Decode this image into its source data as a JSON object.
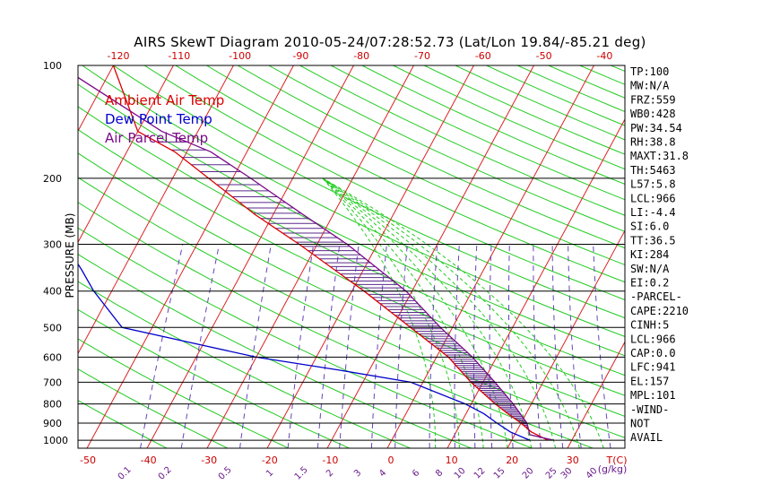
{
  "chart_data": {
    "type": "line",
    "title": "AIRS SkewT Diagram 2010-05-24/07:28:52.73 (Lat/Lon 19.84/-85.21 deg)",
    "ylabel": "PRESSURE (MB)",
    "y_scale": "log",
    "ylim": [
      1050,
      100
    ],
    "pressure_ticks": [
      100,
      200,
      300,
      400,
      500,
      600,
      700,
      800,
      900,
      1000
    ],
    "temp_ticks_bottom": [
      -50,
      -40,
      -30,
      -20,
      -10,
      0,
      10,
      20,
      30
    ],
    "temp_ticks_top": [
      -120,
      -110,
      -100,
      -90,
      -80,
      -70,
      -60,
      -50,
      -40
    ],
    "temp_unit_label": "T(C)",
    "mixing_ratio_labels": [
      "0.1",
      "0.2",
      "0.5",
      "1",
      "1.5",
      "2",
      "3",
      "4",
      "6",
      "8",
      "10",
      "12",
      "15",
      "20",
      "25",
      "30",
      "40"
    ],
    "mixing_ratio_unit": "(g/kg)",
    "legend": [
      {
        "label": "Ambient Air Temp",
        "color": "#dd0000"
      },
      {
        "label": "Dew Point Temp",
        "color": "#0000cc"
      },
      {
        "label": "Air Parcel Temp",
        "color": "#7a0a8a"
      }
    ],
    "series": [
      {
        "name": "Ambient Air Temp",
        "color": "#dd0000",
        "points": [
          [
            1000,
            26
          ],
          [
            950,
            22.5
          ],
          [
            900,
            20
          ],
          [
            850,
            17
          ],
          [
            800,
            14
          ],
          [
            700,
            8
          ],
          [
            600,
            2
          ],
          [
            500,
            -7
          ],
          [
            400,
            -18
          ],
          [
            300,
            -33
          ],
          [
            250,
            -43
          ],
          [
            200,
            -54
          ],
          [
            170,
            -62
          ],
          [
            150,
            -70
          ],
          [
            100,
            -80
          ]
        ]
      },
      {
        "name": "Dew Point Temp",
        "color": "#0000cc",
        "points": [
          [
            1000,
            23
          ],
          [
            950,
            19
          ],
          [
            900,
            16
          ],
          [
            850,
            13
          ],
          [
            800,
            9
          ],
          [
            700,
            -2
          ],
          [
            650,
            -15
          ],
          [
            600,
            -30
          ],
          [
            500,
            -55
          ],
          [
            400,
            -63
          ],
          [
            350,
            -67
          ],
          [
            300,
            -72
          ],
          [
            250,
            -77
          ],
          [
            200,
            -85
          ],
          [
            150,
            -93
          ],
          [
            100,
            -100
          ]
        ]
      },
      {
        "name": "Air Parcel Temp",
        "color": "#7a0a8a",
        "points": [
          [
            1000,
            27
          ],
          [
            966,
            22.5
          ],
          [
            900,
            21
          ],
          [
            800,
            17
          ],
          [
            700,
            12
          ],
          [
            600,
            6
          ],
          [
            500,
            -2
          ],
          [
            400,
            -11
          ],
          [
            300,
            -25
          ],
          [
            250,
            -35
          ],
          [
            200,
            -47
          ],
          [
            170,
            -56
          ],
          [
            150,
            -66
          ],
          [
            100,
            -89
          ]
        ]
      }
    ],
    "indices": [
      "TP:100",
      "MW:N/A",
      "FRZ:559",
      "WB0:428",
      "PW:34.54",
      "RH:38.8",
      "MAXT:31.8",
      "TH:5463",
      "L57:5.8",
      "LCL:966",
      "LI:-4.4",
      "SI:6.0",
      "TT:36.5",
      "KI:284",
      "SW:N/A",
      "EI:0.2",
      "-PARCEL-",
      "CAPE:2210",
      "CINH:5",
      "LCL:966",
      "CAP:0.0",
      "LFC:941",
      "EL:157",
      "MPL:101",
      "-WIND-",
      "NOT",
      "AVAIL"
    ],
    "grid": true
  }
}
